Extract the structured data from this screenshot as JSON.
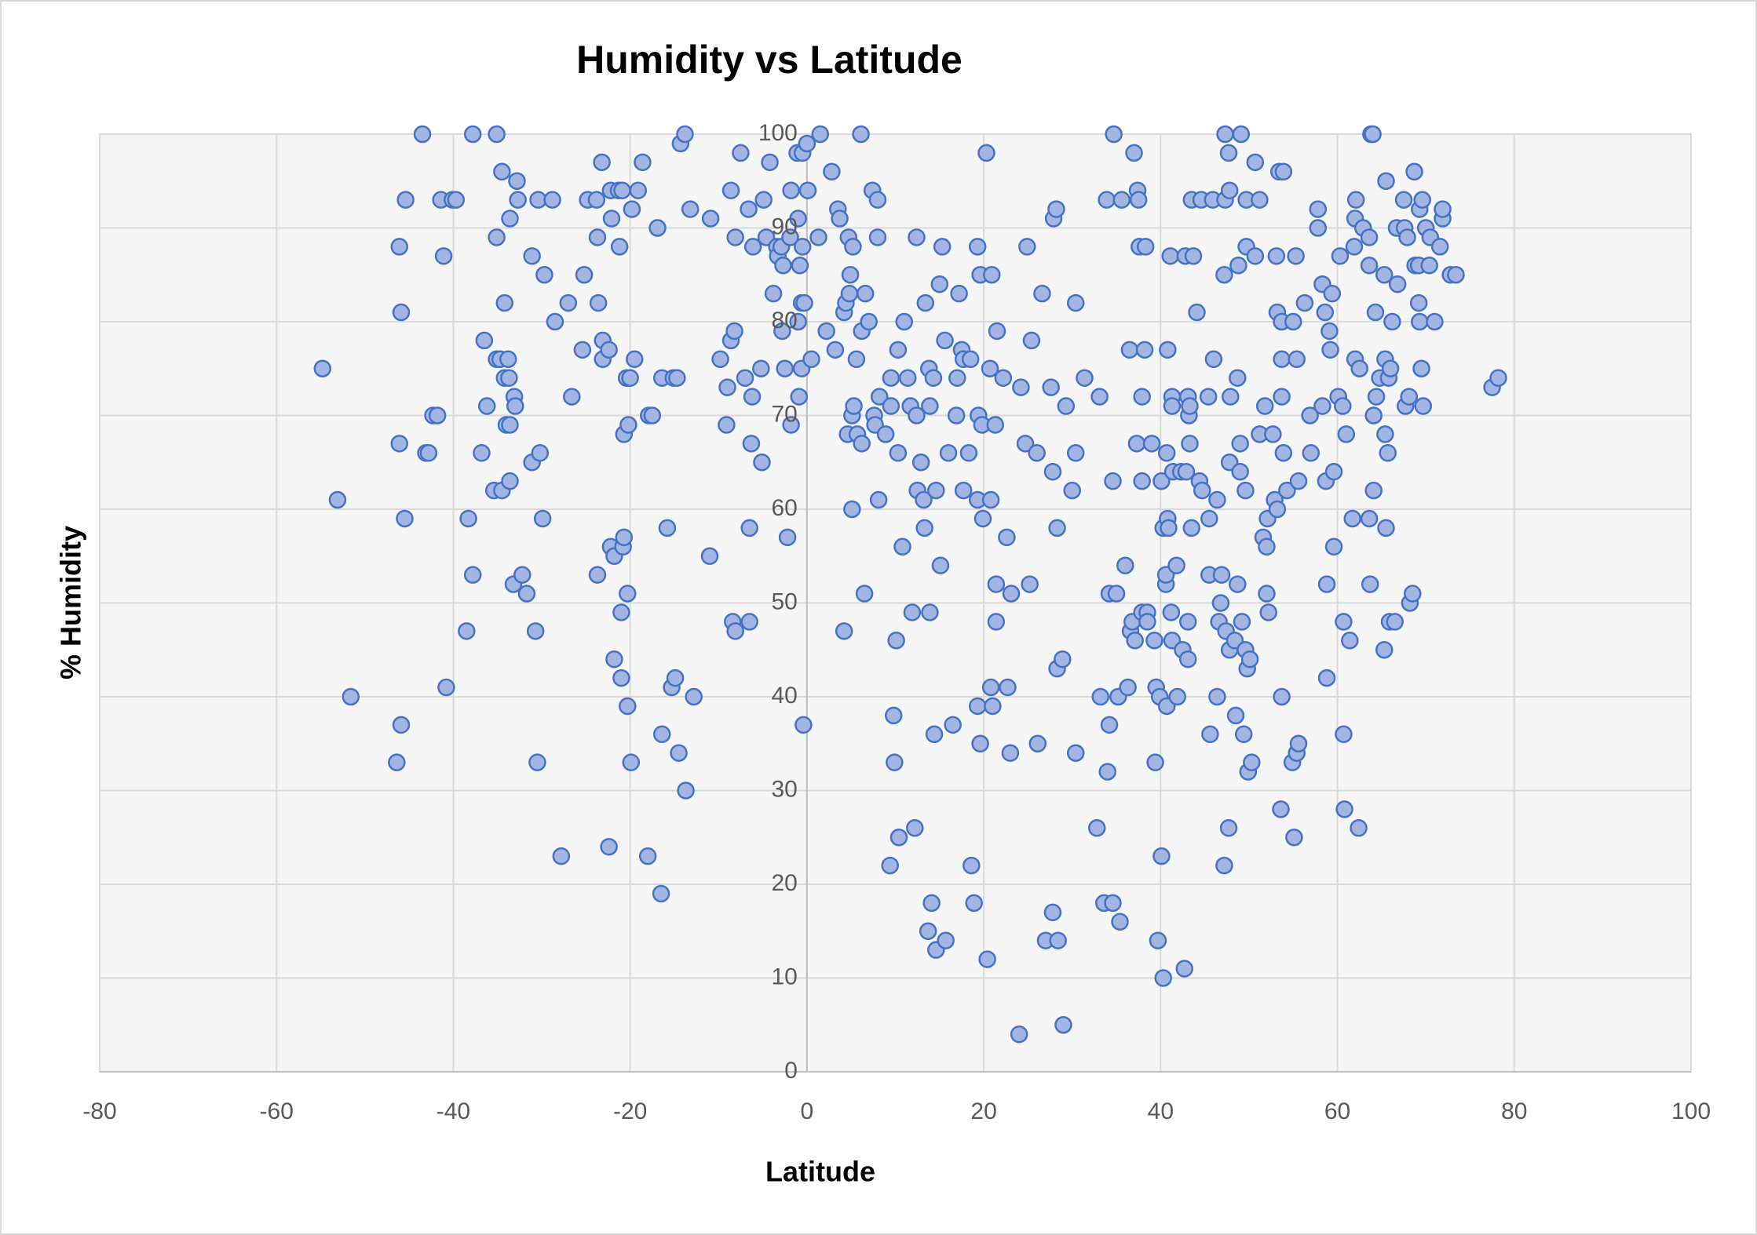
{
  "chart_data": {
    "type": "scatter",
    "title": "Humidity vs Latitude",
    "x_label": "Latitude",
    "y_label": "% Humidity",
    "color": "#a3b5e3",
    "edge_color": "#4472c4",
    "grid": true,
    "xlim": [
      -80,
      100
    ],
    "xticks": [
      -80,
      -60,
      -40,
      -20,
      0,
      20,
      40,
      60,
      80,
      100
    ],
    "ylim": [
      0,
      100
    ],
    "yticks": [
      0,
      10,
      20,
      30,
      40,
      50,
      60,
      70,
      80,
      90,
      100
    ],
    "x": [
      -54.8,
      -53.1,
      -51.6,
      -46.4,
      -46.1,
      -46.1,
      -45.9,
      -45.9,
      -45.5,
      -45.4,
      -43.5,
      -43.1,
      -42.8,
      -42.3,
      -41.8,
      -41.4,
      -41.1,
      -40.8,
      -40.1,
      -39.7,
      -38.5,
      -38.3,
      -37.8,
      -37.8,
      -36.8,
      -36.5,
      -36.2,
      -35.4,
      -35.1,
      -35.1,
      -35.1,
      -34.7,
      -34.5,
      -34.5,
      -34.2,
      -34.2,
      -34.0,
      -33.8,
      -33.7,
      -33.6,
      -33.6,
      -33.6,
      -33.2,
      -33.1,
      -33.0,
      -32.8,
      -32.7,
      -32.2,
      -31.7,
      -31.1,
      -31.1,
      -30.7,
      -30.5,
      -30.4,
      -30.2,
      -29.9,
      -29.7,
      -28.8,
      -28.5,
      -27.8,
      -27.0,
      -26.6,
      -25.4,
      -25.2,
      -24.8,
      -23.8,
      -23.7,
      -23.7,
      -23.6,
      -23.2,
      -23.1,
      -23.1,
      -22.4,
      -22.4,
      -22.2,
      -22.2,
      -22.1,
      -21.8,
      -21.8,
      -21.3,
      -21.2,
      -21.0,
      -21.0,
      -20.9,
      -20.8,
      -20.7,
      -20.7,
      -20.4,
      -20.3,
      -20.3,
      -20.2,
      -20.0,
      -19.9,
      -19.8,
      -19.5,
      -19.1,
      -18.6,
      -18.0,
      -17.9,
      -17.5,
      -16.9,
      -16.5,
      -16.4,
      -16.4,
      -15.8,
      -15.3,
      -15.1,
      -14.9,
      -14.7,
      -14.5,
      -14.3,
      -13.8,
      -13.7,
      -13.2,
      -12.8,
      -11.0,
      -10.9,
      -9.8,
      -9.1,
      -9.0,
      -8.6,
      -8.6,
      -8.4,
      -8.2,
      -8.1,
      -8.1,
      -7.5,
      -7.0,
      -6.6,
      -6.5,
      -6.5,
      -6.3,
      -6.2,
      -6.1,
      -5.2,
      -5.1,
      -4.9,
      -4.6,
      -4.2,
      -3.8,
      -3.4,
      -3.3,
      -2.9,
      -2.8,
      -2.7,
      -2.5,
      -2.2,
      -1.9,
      -1.8,
      -1.8,
      -1.1,
      -1.0,
      -1.0,
      -0.9,
      -0.8,
      -0.6,
      -0.6,
      -0.5,
      -0.5,
      -0.4,
      -0.3,
      0.0,
      0.1,
      0.5,
      1.3,
      1.5,
      2.2,
      2.8,
      3.2,
      3.5,
      3.7,
      4.2,
      4.2,
      4.4,
      4.6,
      4.7,
      4.8,
      4.9,
      5.1,
      5.1,
      5.2,
      5.3,
      5.6,
      5.7,
      6.1,
      6.2,
      6.2,
      6.5,
      6.6,
      7.0,
      7.4,
      7.6,
      7.7,
      8.0,
      8.0,
      8.1,
      8.2,
      8.9,
      9.4,
      9.5,
      9.5,
      9.8,
      9.9,
      10.1,
      10.3,
      10.3,
      10.4,
      10.8,
      11.0,
      11.4,
      11.7,
      11.9,
      12.2,
      12.4,
      12.4,
      12.5,
      12.9,
      13.2,
      13.3,
      13.4,
      13.7,
      13.8,
      13.9,
      13.9,
      14.1,
      14.3,
      14.4,
      14.6,
      14.6,
      15.0,
      15.1,
      15.3,
      15.6,
      15.7,
      16.0,
      16.5,
      16.9,
      17.0,
      17.2,
      17.5,
      17.7,
      17.7,
      18.3,
      18.5,
      18.6,
      18.9,
      19.3,
      19.3,
      19.3,
      19.4,
      19.6,
      19.6,
      19.8,
      19.9,
      20.3,
      20.4,
      20.7,
      20.8,
      20.8,
      20.9,
      21.0,
      21.3,
      21.4,
      21.4,
      21.5,
      22.2,
      22.6,
      22.7,
      23.0,
      23.1,
      24.0,
      24.2,
      24.7,
      24.9,
      25.2,
      25.4,
      26.0,
      26.1,
      26.6,
      27.0,
      27.6,
      27.8,
      27.8,
      27.9,
      28.2,
      28.3,
      28.3,
      28.4,
      28.9,
      29.0,
      29.3,
      30.0,
      30.4,
      30.4,
      30.4,
      31.4,
      32.8,
      33.1,
      33.2,
      33.6,
      33.9,
      34.0,
      34.2,
      34.2,
      34.6,
      34.6,
      34.7,
      35.0,
      35.2,
      35.4,
      35.6,
      36.0,
      36.3,
      36.5,
      36.6,
      36.8,
      37.0,
      37.1,
      37.3,
      37.4,
      37.5,
      37.6,
      37.9,
      37.9,
      37.9,
      38.2,
      38.3,
      38.5,
      38.5,
      39.0,
      39.3,
      39.4,
      39.5,
      39.7,
      39.9,
      40.1,
      40.1,
      40.3,
      40.3,
      40.6,
      40.6,
      40.7,
      40.7,
      40.8,
      40.8,
      40.9,
      41.1,
      41.2,
      41.3,
      41.3,
      41.3,
      41.4,
      41.8,
      41.9,
      42.3,
      42.5,
      42.7,
      42.8,
      42.9,
      43.1,
      43.1,
      43.1,
      43.2,
      43.3,
      43.3,
      43.5,
      43.5,
      43.7,
      44.1,
      44.4,
      44.6,
      44.7,
      45.4,
      45.5,
      45.5,
      45.6,
      45.9,
      46.0,
      46.4,
      46.4,
      46.6,
      46.8,
      46.9,
      47.2,
      47.2,
      47.3,
      47.3,
      47.4,
      47.7,
      47.7,
      47.8,
      47.8,
      47.8,
      47.9,
      48.4,
      48.5,
      48.7,
      48.7,
      48.8,
      49.0,
      49.0,
      49.1,
      49.2,
      49.4,
      49.6,
      49.6,
      49.7,
      49.7,
      49.8,
      49.9,
      50.1,
      50.3,
      50.7,
      50.7,
      51.2,
      51.2,
      51.6,
      51.8,
      52.0,
      52.0,
      52.1,
      52.2,
      52.7,
      52.9,
      53.1,
      53.2,
      53.2,
      53.4,
      53.6,
      53.7,
      53.7,
      53.7,
      53.7,
      53.9,
      53.9,
      54.3,
      54.9,
      55.0,
      55.1,
      55.3,
      55.4,
      55.4,
      55.6,
      55.6,
      56.3,
      56.9,
      57.0,
      57.8,
      57.8,
      58.3,
      58.3,
      58.6,
      58.7,
      58.8,
      58.8,
      59.1,
      59.2,
      59.4,
      59.6,
      59.6,
      60.1,
      60.3,
      60.6,
      60.7,
      60.7,
      60.8,
      61.0,
      61.4,
      61.7,
      61.9,
      62.0,
      62.0,
      62.1,
      62.4,
      62.5,
      62.9,
      63.6,
      63.6,
      63.6,
      63.7,
      63.8,
      64.0,
      64.1,
      64.1,
      64.3,
      64.4,
      64.8,
      65.3,
      65.3,
      65.4,
      65.4,
      65.5,
      65.5,
      65.7,
      65.8,
      65.9,
      66.0,
      66.2,
      66.5,
      66.7,
      66.8,
      67.5,
      67.6,
      67.7,
      67.9,
      68.1,
      68.2,
      68.5,
      68.7,
      68.8,
      69.2,
      69.2,
      69.3,
      69.3,
      69.5,
      69.6,
      69.7,
      70.0,
      70.4,
      70.5,
      71.0,
      71.6,
      71.9,
      71.9,
      72.8,
      73.4,
      77.5,
      78.2
    ],
    "values": [
      75,
      61,
      40,
      33,
      67,
      88,
      81,
      37,
      59,
      93,
      100,
      66,
      66,
      70,
      70,
      93,
      87,
      41,
      93,
      93,
      47,
      59,
      53,
      100,
      66,
      78,
      71,
      62,
      89,
      100,
      76,
      76,
      96,
      62,
      82,
      74,
      69,
      76,
      74,
      91,
      69,
      63,
      52,
      72,
      71,
      95,
      93,
      53,
      51,
      65,
      87,
      47,
      33,
      93,
      66,
      59,
      85,
      93,
      80,
      23,
      82,
      72,
      77,
      85,
      93,
      93,
      89,
      53,
      82,
      97,
      76,
      78,
      24,
      77,
      56,
      94,
      91,
      44,
      55,
      94,
      88,
      49,
      42,
      94,
      56,
      68,
      57,
      74,
      39,
      51,
      69,
      74,
      33,
      92,
      76,
      94,
      97,
      23,
      70,
      70,
      90,
      19,
      36,
      74,
      58,
      41,
      74,
      42,
      74,
      34,
      99,
      100,
      30,
      92,
      40,
      55,
      91,
      76,
      69,
      73,
      78,
      94,
      48,
      79,
      89,
      47,
      98,
      74,
      92,
      48,
      58,
      67,
      72,
      88,
      75,
      65,
      93,
      89,
      97,
      83,
      88,
      87,
      88,
      79,
      86,
      75,
      57,
      89,
      69,
      94,
      98,
      91,
      80,
      72,
      86,
      82,
      75,
      88,
      98,
      37,
      82,
      99,
      94,
      76,
      89,
      100,
      79,
      96,
      77,
      92,
      91,
      47,
      81,
      82,
      68,
      89,
      83,
      85,
      60,
      70,
      88,
      71,
      76,
      68,
      100,
      79,
      67,
      51,
      83,
      80,
      94,
      70,
      69,
      89,
      93,
      61,
      72,
      68,
      22,
      74,
      71,
      38,
      33,
      46,
      66,
      77,
      25,
      56,
      80,
      74,
      71,
      49,
      26,
      89,
      70,
      62,
      65,
      61,
      58,
      82,
      15,
      75,
      49,
      71,
      18,
      74,
      36,
      13,
      62,
      84,
      54,
      88,
      78,
      14,
      66,
      37,
      70,
      74,
      83,
      77,
      62,
      76,
      66,
      76,
      22,
      18,
      88,
      61,
      39,
      70,
      35,
      85,
      69,
      59,
      98,
      12,
      75,
      41,
      61,
      85,
      39,
      69,
      48,
      52,
      79,
      74,
      57,
      41,
      34,
      51,
      4,
      73,
      67,
      88,
      52,
      78,
      66,
      35,
      83,
      14,
      73,
      64,
      17,
      91,
      92,
      43,
      58,
      14,
      44,
      5,
      71,
      62,
      34,
      66,
      82,
      74,
      26,
      72,
      40,
      18,
      93,
      32,
      51,
      37,
      18,
      63,
      100,
      51,
      40,
      16,
      93,
      54,
      41,
      77,
      47,
      48,
      98,
      46,
      67,
      94,
      93,
      88,
      72,
      49,
      63,
      77,
      88,
      49,
      48,
      67,
      46,
      33,
      41,
      14,
      40,
      23,
      63,
      10,
      58,
      52,
      53,
      39,
      66,
      77,
      59,
      58,
      87,
      49,
      72,
      71,
      46,
      64,
      54,
      40,
      64,
      45,
      11,
      87,
      64,
      72,
      48,
      44,
      70,
      67,
      71,
      58,
      93,
      87,
      81,
      63,
      93,
      62,
      72,
      59,
      53,
      36,
      93,
      76,
      40,
      61,
      48,
      50,
      53,
      22,
      85,
      100,
      93,
      47,
      98,
      26,
      45,
      65,
      94,
      72,
      46,
      38,
      52,
      74,
      86,
      67,
      64,
      100,
      48,
      36,
      45,
      62,
      88,
      93,
      43,
      32,
      44,
      33,
      97,
      87,
      68,
      93,
      57,
      71,
      56,
      51,
      59,
      49,
      68,
      61,
      87,
      81,
      60,
      96,
      28,
      80,
      72,
      76,
      40,
      66,
      96,
      62,
      33,
      80,
      25,
      87,
      34,
      76,
      63,
      35,
      82,
      70,
      66,
      90,
      92,
      84,
      71,
      81,
      63,
      42,
      52,
      79,
      77,
      83,
      64,
      56,
      72,
      87,
      71,
      36,
      48,
      28,
      68,
      46,
      59,
      88,
      76,
      91,
      93,
      26,
      75,
      90,
      86,
      89,
      59,
      52,
      100,
      100,
      62,
      70,
      81,
      72,
      74,
      45,
      85,
      68,
      76,
      95,
      58,
      66,
      74,
      48,
      75,
      80,
      48,
      90,
      84,
      93,
      90,
      71,
      89,
      72,
      50,
      51,
      96,
      86,
      86,
      82,
      92,
      80,
      75,
      93,
      71,
      90,
      86,
      89,
      80,
      88,
      91,
      92,
      85,
      85,
      73,
      74
    ]
  }
}
